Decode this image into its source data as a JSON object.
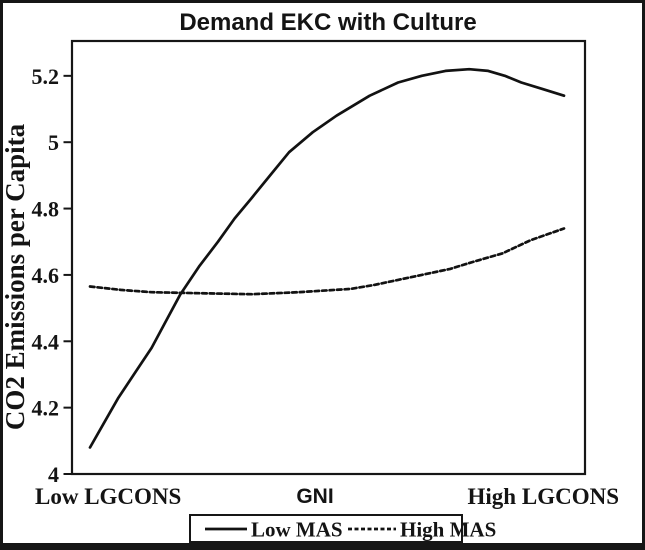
{
  "figure": {
    "background": "#ffffff",
    "border_color": "#161616",
    "line_color": "#121212"
  },
  "chart_data": {
    "type": "line",
    "title": "Demand EKC with Culture",
    "ylabel": "CO2 Emissions per Capita",
    "xlabel": "GNI",
    "x_left_label": "Low LGCONS",
    "x_right_label": "High LGCONS",
    "ylim": [
      4.0,
      5.305
    ],
    "yticks": [
      4,
      4.2,
      4.4,
      4.6,
      4.8,
      5,
      5.2
    ],
    "ytick_labels": [
      "4",
      "4.2",
      "4.4",
      "4.6",
      "4.8",
      "5",
      "5.2"
    ],
    "grid": false,
    "legend_position": "bottom-center",
    "series": [
      {
        "name": "Low MAS",
        "style": "solid",
        "color": "#121212",
        "points": [
          [
            0.0,
            4.08
          ],
          [
            0.03,
            4.155
          ],
          [
            0.06,
            4.23
          ],
          [
            0.095,
            4.305
          ],
          [
            0.13,
            4.38
          ],
          [
            0.16,
            4.46
          ],
          [
            0.19,
            4.54
          ],
          [
            0.23,
            4.625
          ],
          [
            0.27,
            4.7
          ],
          [
            0.305,
            4.77
          ],
          [
            0.34,
            4.83
          ],
          [
            0.38,
            4.9
          ],
          [
            0.42,
            4.97
          ],
          [
            0.47,
            5.03
          ],
          [
            0.52,
            5.08
          ],
          [
            0.555,
            5.11
          ],
          [
            0.59,
            5.14
          ],
          [
            0.65,
            5.18
          ],
          [
            0.7,
            5.2
          ],
          [
            0.75,
            5.215
          ],
          [
            0.8,
            5.22
          ],
          [
            0.84,
            5.215
          ],
          [
            0.875,
            5.2
          ],
          [
            0.91,
            5.18
          ],
          [
            0.955,
            5.16
          ],
          [
            1.0,
            5.14
          ]
        ]
      },
      {
        "name": "High MAS",
        "style": "dashed",
        "color": "#121212",
        "points": [
          [
            0.0,
            4.565
          ],
          [
            0.065,
            4.555
          ],
          [
            0.13,
            4.548
          ],
          [
            0.23,
            4.545
          ],
          [
            0.34,
            4.542
          ],
          [
            0.44,
            4.548
          ],
          [
            0.55,
            4.558
          ],
          [
            0.6,
            4.57
          ],
          [
            0.65,
            4.585
          ],
          [
            0.7,
            4.6
          ],
          [
            0.76,
            4.618
          ],
          [
            0.81,
            4.64
          ],
          [
            0.87,
            4.665
          ],
          [
            0.93,
            4.705
          ],
          [
            1.0,
            4.74
          ]
        ]
      }
    ]
  }
}
